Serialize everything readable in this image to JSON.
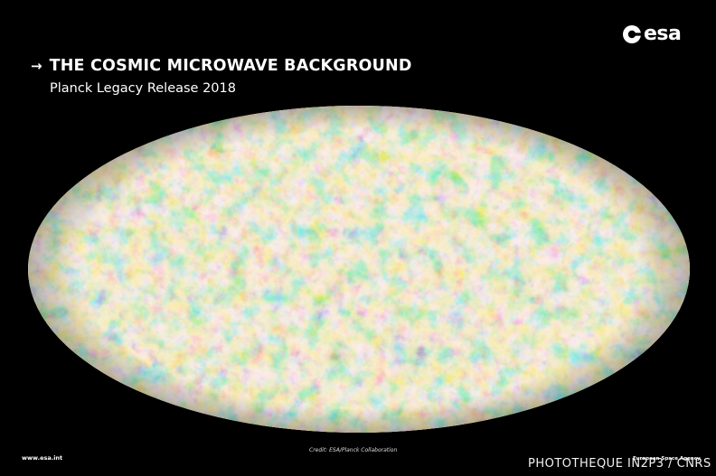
{
  "header": {
    "arrow": "→",
    "title": "THE COSMIC MICROWAVE BACKGROUND",
    "subtitle": "Planck Legacy Release 2018"
  },
  "logo": {
    "text": "esa",
    "icon": "esa-logo-icon"
  },
  "footer": {
    "website": "www.esa.int",
    "credit": "Credit: ESA/Planck Collaboration",
    "agency": "European Space Agency",
    "watermark": "PHOTOTHEQUE IN2P3 / CNRS"
  },
  "map": {
    "subject": "cmb-all-sky-map",
    "colors": {
      "base": "#f5d48f",
      "cold": "#2f73c9",
      "cold_light": "#7fc1de",
      "warm": "#ee8a3b",
      "hot": "#b8310f"
    }
  }
}
